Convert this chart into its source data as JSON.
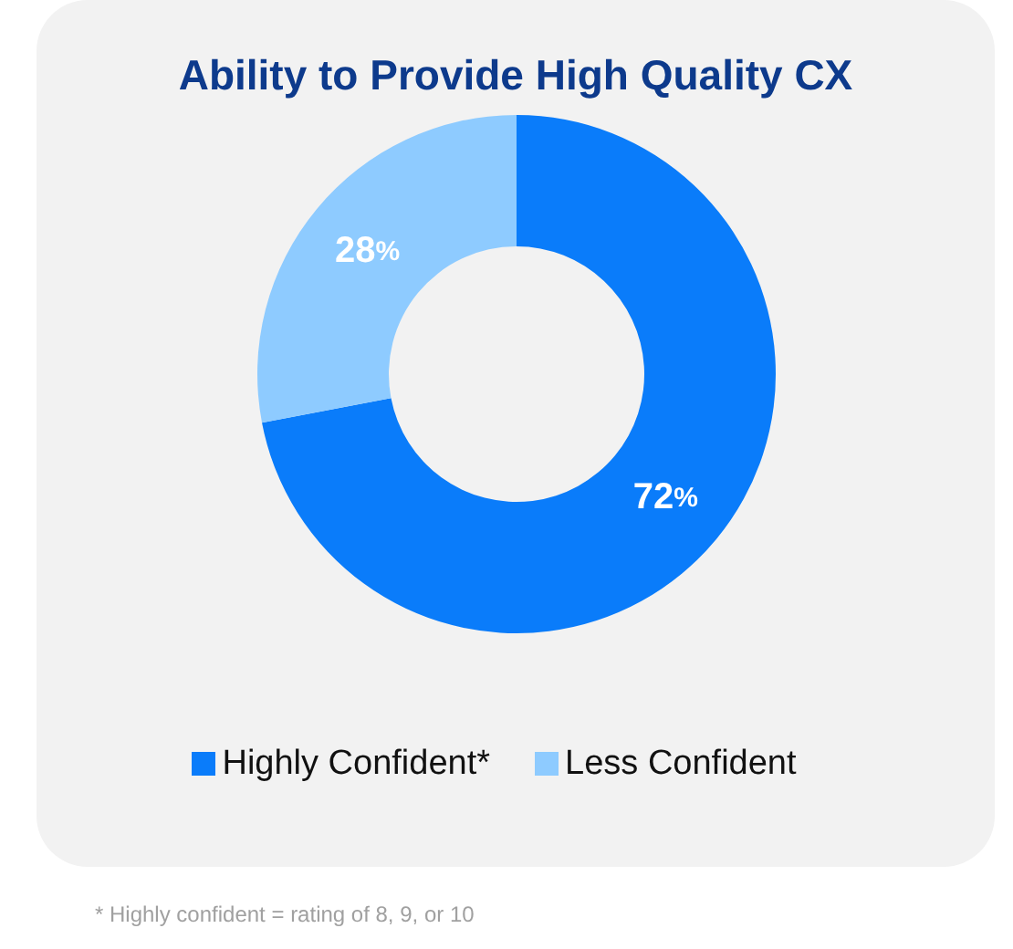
{
  "chart_data": {
    "type": "donut",
    "title": "Ability to Provide High Quality CX",
    "categories": [
      "Highly Confident*",
      "Less Confident"
    ],
    "values": [
      72,
      28
    ],
    "colors": [
      "#0a7cfa",
      "#8ecbff"
    ],
    "value_labels": [
      "72%",
      "28%"
    ],
    "legend": "bottom",
    "annotations": [
      "* Highly confident = rating of 8, 9, or 10"
    ]
  }
}
